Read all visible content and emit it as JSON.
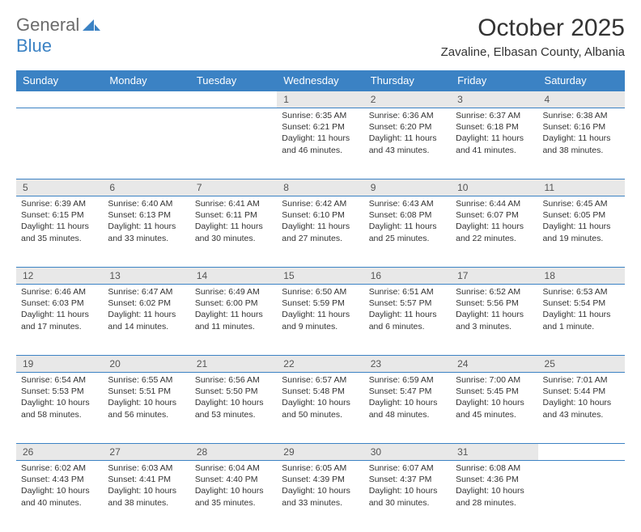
{
  "logo": {
    "word1": "General",
    "word2": "Blue"
  },
  "title": "October 2025",
  "location": "Zavaline, Elbasan County, Albania",
  "colors": {
    "header_bg": "#3b82c4",
    "header_fg": "#ffffff",
    "daynum_bg": "#e8e8e8",
    "border": "#3b82c4",
    "logo_gray": "#6b6b6b",
    "logo_blue": "#3b82c4"
  },
  "weekdays": [
    "Sunday",
    "Monday",
    "Tuesday",
    "Wednesday",
    "Thursday",
    "Friday",
    "Saturday"
  ],
  "labels": {
    "sunrise": "Sunrise:",
    "sunset": "Sunset:",
    "daylight": "Daylight:"
  },
  "weeks": [
    [
      null,
      null,
      null,
      {
        "n": "1",
        "sunrise": "6:35 AM",
        "sunset": "6:21 PM",
        "daylight": "11 hours and 46 minutes."
      },
      {
        "n": "2",
        "sunrise": "6:36 AM",
        "sunset": "6:20 PM",
        "daylight": "11 hours and 43 minutes."
      },
      {
        "n": "3",
        "sunrise": "6:37 AM",
        "sunset": "6:18 PM",
        "daylight": "11 hours and 41 minutes."
      },
      {
        "n": "4",
        "sunrise": "6:38 AM",
        "sunset": "6:16 PM",
        "daylight": "11 hours and 38 minutes."
      }
    ],
    [
      {
        "n": "5",
        "sunrise": "6:39 AM",
        "sunset": "6:15 PM",
        "daylight": "11 hours and 35 minutes."
      },
      {
        "n": "6",
        "sunrise": "6:40 AM",
        "sunset": "6:13 PM",
        "daylight": "11 hours and 33 minutes."
      },
      {
        "n": "7",
        "sunrise": "6:41 AM",
        "sunset": "6:11 PM",
        "daylight": "11 hours and 30 minutes."
      },
      {
        "n": "8",
        "sunrise": "6:42 AM",
        "sunset": "6:10 PM",
        "daylight": "11 hours and 27 minutes."
      },
      {
        "n": "9",
        "sunrise": "6:43 AM",
        "sunset": "6:08 PM",
        "daylight": "11 hours and 25 minutes."
      },
      {
        "n": "10",
        "sunrise": "6:44 AM",
        "sunset": "6:07 PM",
        "daylight": "11 hours and 22 minutes."
      },
      {
        "n": "11",
        "sunrise": "6:45 AM",
        "sunset": "6:05 PM",
        "daylight": "11 hours and 19 minutes."
      }
    ],
    [
      {
        "n": "12",
        "sunrise": "6:46 AM",
        "sunset": "6:03 PM",
        "daylight": "11 hours and 17 minutes."
      },
      {
        "n": "13",
        "sunrise": "6:47 AM",
        "sunset": "6:02 PM",
        "daylight": "11 hours and 14 minutes."
      },
      {
        "n": "14",
        "sunrise": "6:49 AM",
        "sunset": "6:00 PM",
        "daylight": "11 hours and 11 minutes."
      },
      {
        "n": "15",
        "sunrise": "6:50 AM",
        "sunset": "5:59 PM",
        "daylight": "11 hours and 9 minutes."
      },
      {
        "n": "16",
        "sunrise": "6:51 AM",
        "sunset": "5:57 PM",
        "daylight": "11 hours and 6 minutes."
      },
      {
        "n": "17",
        "sunrise": "6:52 AM",
        "sunset": "5:56 PM",
        "daylight": "11 hours and 3 minutes."
      },
      {
        "n": "18",
        "sunrise": "6:53 AM",
        "sunset": "5:54 PM",
        "daylight": "11 hours and 1 minute."
      }
    ],
    [
      {
        "n": "19",
        "sunrise": "6:54 AM",
        "sunset": "5:53 PM",
        "daylight": "10 hours and 58 minutes."
      },
      {
        "n": "20",
        "sunrise": "6:55 AM",
        "sunset": "5:51 PM",
        "daylight": "10 hours and 56 minutes."
      },
      {
        "n": "21",
        "sunrise": "6:56 AM",
        "sunset": "5:50 PM",
        "daylight": "10 hours and 53 minutes."
      },
      {
        "n": "22",
        "sunrise": "6:57 AM",
        "sunset": "5:48 PM",
        "daylight": "10 hours and 50 minutes."
      },
      {
        "n": "23",
        "sunrise": "6:59 AM",
        "sunset": "5:47 PM",
        "daylight": "10 hours and 48 minutes."
      },
      {
        "n": "24",
        "sunrise": "7:00 AM",
        "sunset": "5:45 PM",
        "daylight": "10 hours and 45 minutes."
      },
      {
        "n": "25",
        "sunrise": "7:01 AM",
        "sunset": "5:44 PM",
        "daylight": "10 hours and 43 minutes."
      }
    ],
    [
      {
        "n": "26",
        "sunrise": "6:02 AM",
        "sunset": "4:43 PM",
        "daylight": "10 hours and 40 minutes."
      },
      {
        "n": "27",
        "sunrise": "6:03 AM",
        "sunset": "4:41 PM",
        "daylight": "10 hours and 38 minutes."
      },
      {
        "n": "28",
        "sunrise": "6:04 AM",
        "sunset": "4:40 PM",
        "daylight": "10 hours and 35 minutes."
      },
      {
        "n": "29",
        "sunrise": "6:05 AM",
        "sunset": "4:39 PM",
        "daylight": "10 hours and 33 minutes."
      },
      {
        "n": "30",
        "sunrise": "6:07 AM",
        "sunset": "4:37 PM",
        "daylight": "10 hours and 30 minutes."
      },
      {
        "n": "31",
        "sunrise": "6:08 AM",
        "sunset": "4:36 PM",
        "daylight": "10 hours and 28 minutes."
      },
      null
    ]
  ]
}
